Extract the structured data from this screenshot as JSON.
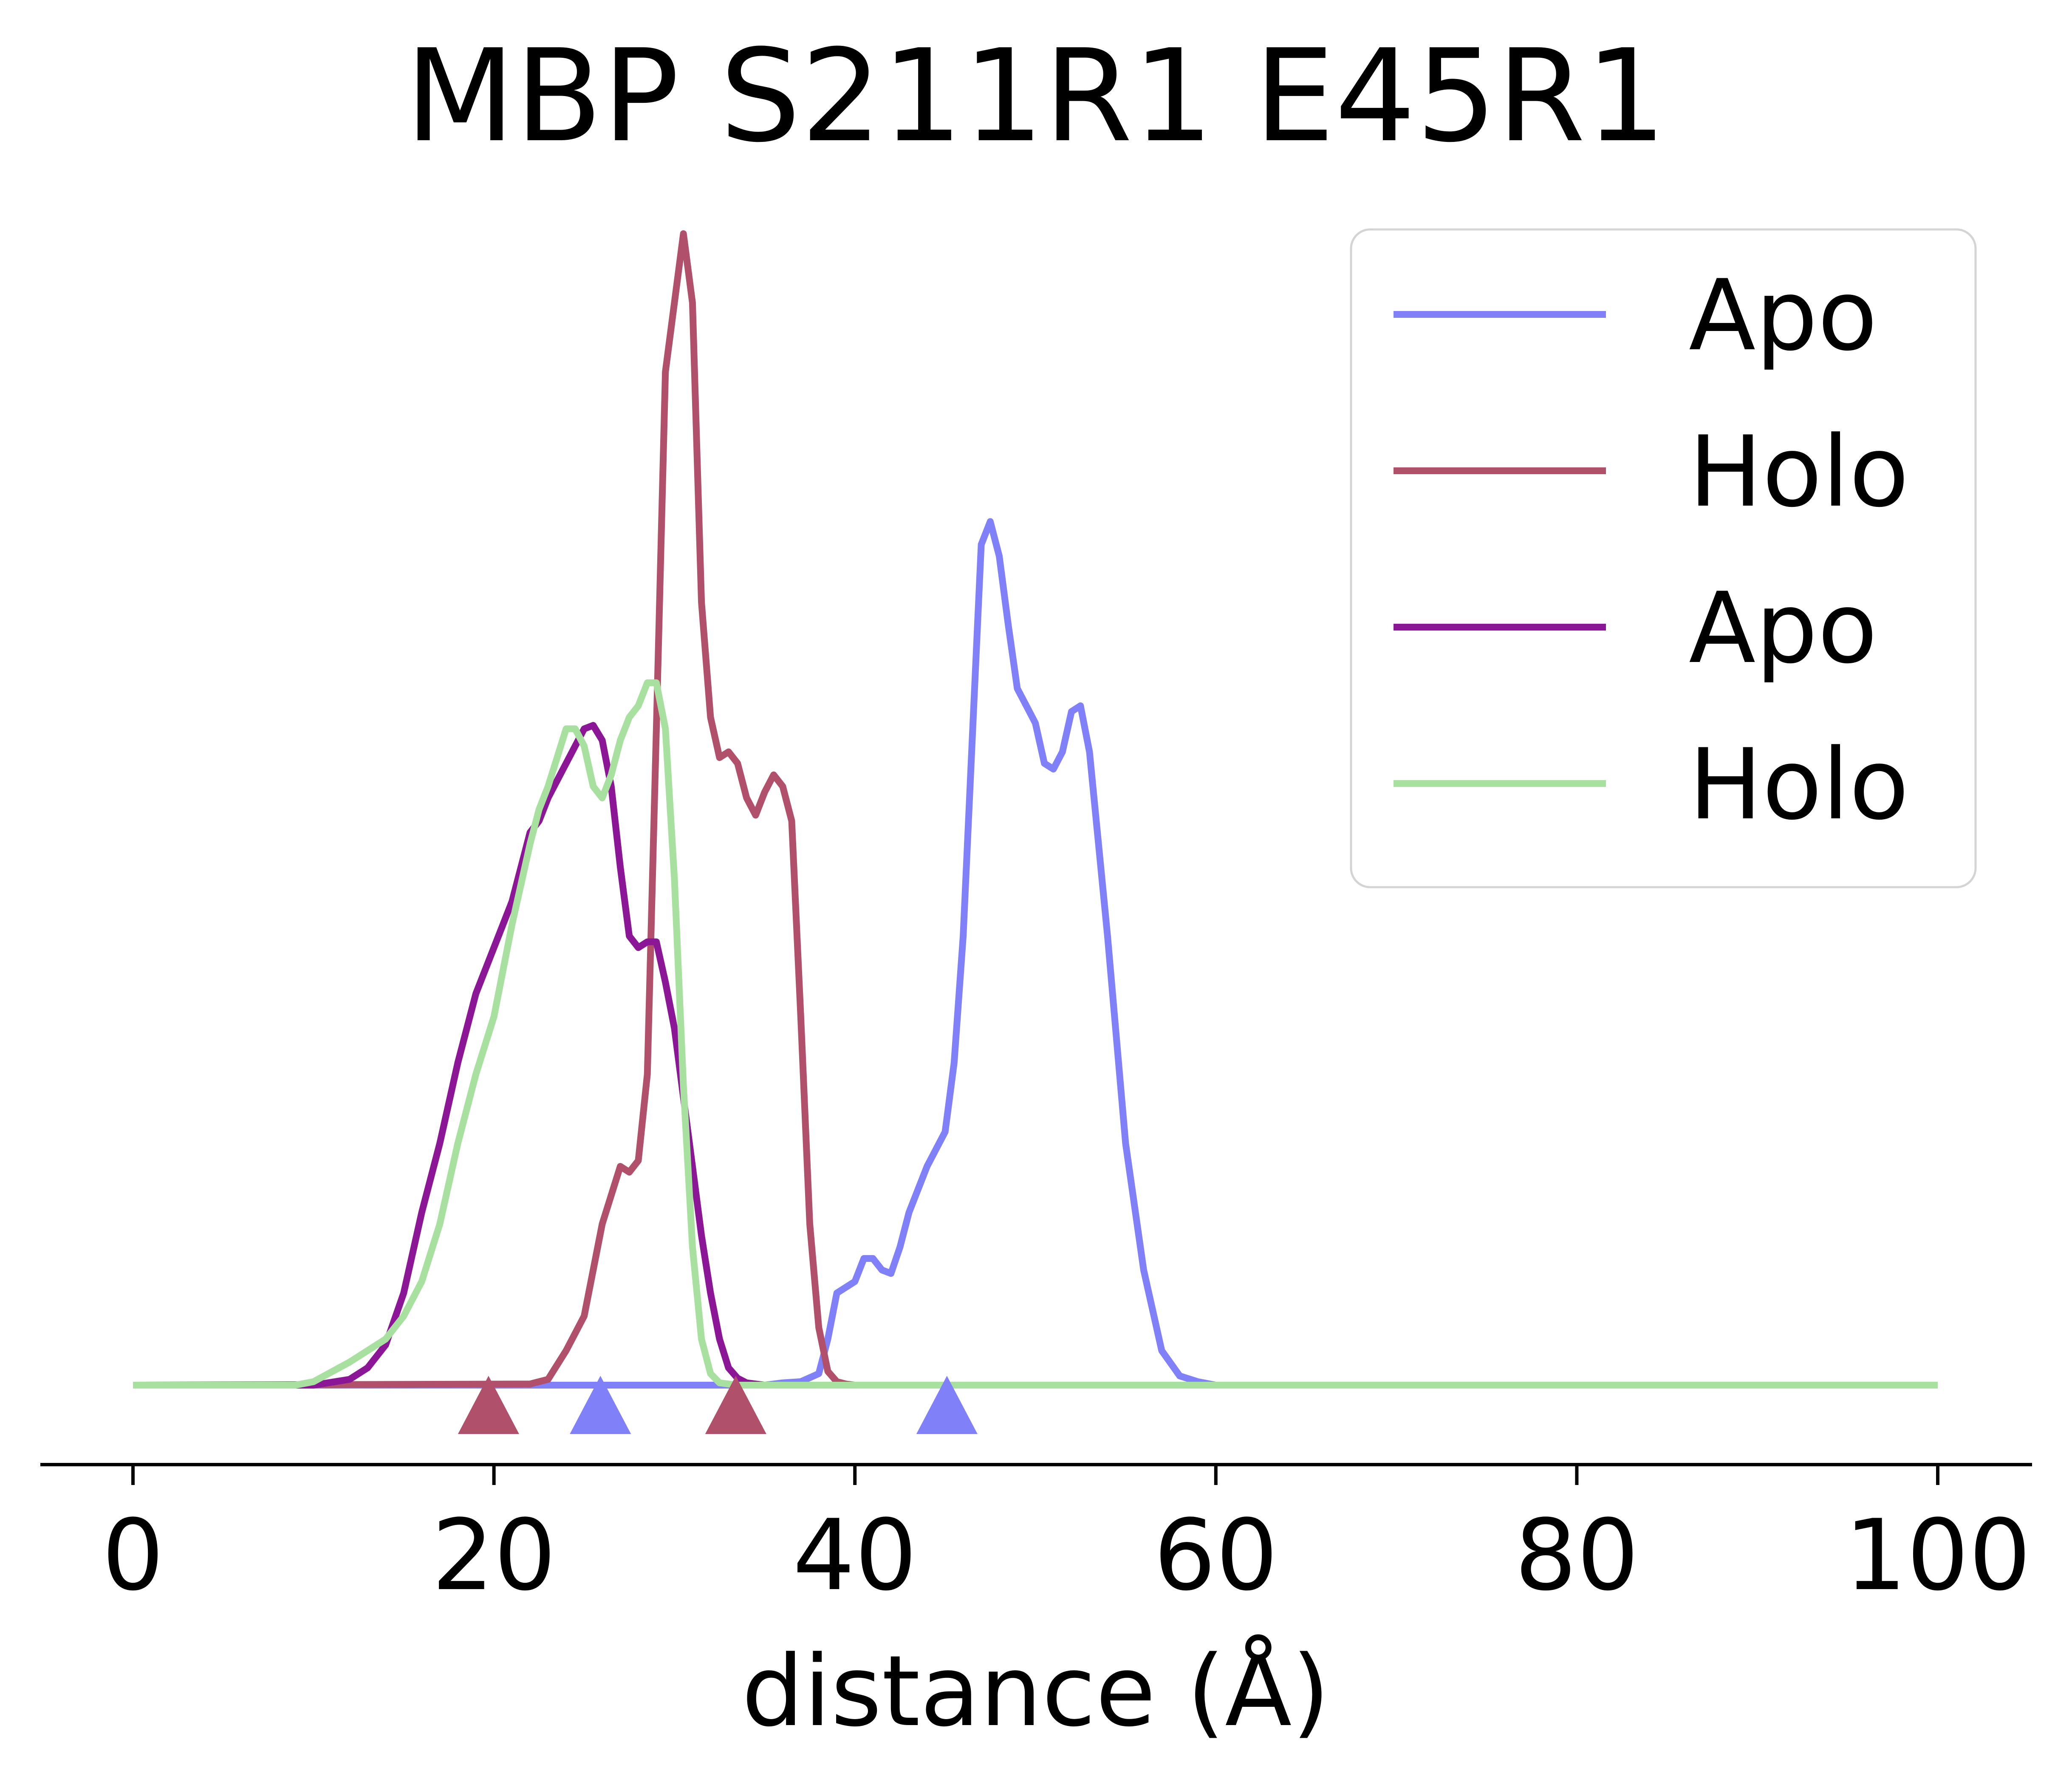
{
  "chart_data": {
    "type": "line",
    "title": "MBP S211R1 E45R1",
    "xlabel": "distance (Å)",
    "ylabel": "",
    "xlim": [
      -5,
      105
    ],
    "xticks": [
      0,
      20,
      40,
      60,
      80,
      100
    ],
    "yaxis_visible": false,
    "grid": false,
    "legend_position": "top-right",
    "legend": [
      "Apo",
      "Holo",
      "Apo",
      "Holo"
    ],
    "series": [
      {
        "name": "Apo",
        "color": "#8080f8",
        "x": [
          0,
          35,
          36,
          37,
          38,
          38.5,
          39,
          40,
          40.5,
          41,
          41.5,
          42,
          42.5,
          43,
          44,
          45,
          45.5,
          46,
          46.5,
          47,
          47.5,
          48,
          48.5,
          49,
          49.5,
          50,
          50.5,
          51,
          51.5,
          52,
          52.5,
          53,
          54,
          55,
          56,
          57,
          58,
          59,
          60,
          100
        ],
        "y": [
          0.0,
          0.0,
          0.002,
          0.003,
          0.01,
          0.04,
          0.08,
          0.09,
          0.11,
          0.11,
          0.1,
          0.097,
          0.12,
          0.15,
          0.19,
          0.22,
          0.28,
          0.39,
          0.56,
          0.73,
          0.75,
          0.72,
          0.66,
          0.605,
          0.59,
          0.575,
          0.54,
          0.535,
          0.55,
          0.585,
          0.59,
          0.55,
          0.39,
          0.21,
          0.1,
          0.03,
          0.008,
          0.003,
          0.0,
          0.0
        ]
      },
      {
        "name": "Holo",
        "color": "#b0506a",
        "x": [
          0,
          22,
          23,
          24,
          25,
          26,
          27,
          27.5,
          28,
          28.5,
          29,
          29.5,
          30,
          30.5,
          31,
          31.5,
          32,
          32.5,
          33,
          33.5,
          34,
          34.5,
          35,
          35.5,
          36,
          36.5,
          37,
          37.5,
          38,
          38.5,
          39,
          39.5,
          40,
          41,
          100
        ],
        "y": [
          0.0,
          0.001,
          0.005,
          0.03,
          0.06,
          0.14,
          0.19,
          0.185,
          0.195,
          0.27,
          0.57,
          0.88,
          0.94,
          1.0,
          0.94,
          0.68,
          0.58,
          0.545,
          0.55,
          0.54,
          0.51,
          0.495,
          0.515,
          0.53,
          0.52,
          0.49,
          0.32,
          0.14,
          0.05,
          0.012,
          0.003,
          0.001,
          0.0,
          0.0,
          0.0
        ]
      },
      {
        "name": "Apo",
        "color": "#8c1796",
        "x": [
          0,
          10,
          12,
          13,
          14,
          15,
          16,
          17,
          18,
          19,
          20,
          21,
          22,
          22.5,
          23,
          24,
          25,
          25.5,
          26,
          26.5,
          27,
          27.5,
          28,
          28.5,
          29,
          29.5,
          30,
          30.5,
          31,
          31.5,
          32,
          32.5,
          33,
          33.5,
          34,
          35,
          36,
          100
        ],
        "y": [
          0.0,
          0.0,
          0.005,
          0.015,
          0.035,
          0.08,
          0.15,
          0.21,
          0.28,
          0.34,
          0.38,
          0.42,
          0.48,
          0.49,
          0.51,
          0.54,
          0.57,
          0.573,
          0.56,
          0.52,
          0.45,
          0.39,
          0.38,
          0.385,
          0.385,
          0.35,
          0.31,
          0.25,
          0.19,
          0.13,
          0.08,
          0.04,
          0.015,
          0.006,
          0.002,
          0.0,
          0.0,
          0.0
        ]
      },
      {
        "name": "Holo",
        "color": "#a8e0a0",
        "x": [
          0,
          9,
          10,
          12,
          14,
          15,
          16,
          17,
          18,
          19,
          20,
          21,
          22,
          22.5,
          23,
          23.5,
          24,
          24.5,
          25,
          25.5,
          26,
          26.5,
          27,
          27.5,
          28,
          28.5,
          29,
          29.5,
          30,
          30.5,
          31,
          31.5,
          32,
          32.5,
          33,
          33.5,
          34,
          100
        ],
        "y": [
          0.0,
          0.0,
          0.003,
          0.02,
          0.04,
          0.06,
          0.09,
          0.14,
          0.21,
          0.27,
          0.32,
          0.4,
          0.47,
          0.5,
          0.52,
          0.545,
          0.57,
          0.57,
          0.555,
          0.52,
          0.51,
          0.53,
          0.56,
          0.58,
          0.59,
          0.61,
          0.61,
          0.57,
          0.44,
          0.26,
          0.12,
          0.04,
          0.01,
          0.002,
          0.001,
          0.0,
          0.0,
          0.0
        ]
      }
    ],
    "markers": [
      {
        "x": 19.7,
        "color": "#b0506a"
      },
      {
        "x": 25.9,
        "color": "#8080f8"
      },
      {
        "x": 33.4,
        "color": "#b0506a"
      },
      {
        "x": 45.1,
        "color": "#8080f8"
      }
    ]
  }
}
